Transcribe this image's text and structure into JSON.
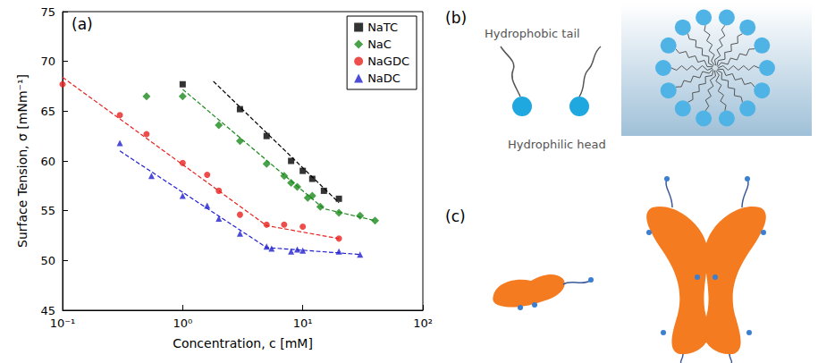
{
  "chart_data": {
    "type": "scatter",
    "annotations": [
      "(a)"
    ],
    "x_label": "Concentration, c [mM]",
    "y_label": "Surface Tension, σ [mNm⁻¹]",
    "log": "x",
    "grid": false,
    "legend": "upper right",
    "xlim": [
      0.1,
      100
    ],
    "xticks": [
      {
        "value": 0.1,
        "label": "10⁻¹"
      },
      {
        "value": 1,
        "label": "10⁰"
      },
      {
        "value": 10,
        "label": "10¹"
      },
      {
        "value": 100,
        "label": "10²"
      }
    ],
    "ylim": [
      45,
      75
    ],
    "yticks": [
      45,
      50,
      55,
      60,
      65,
      70,
      75
    ],
    "series": [
      {
        "name": "NaTC",
        "color": "#000000",
        "marker": "square",
        "line_style": "dashed",
        "x": [
          1,
          3,
          5,
          8,
          10,
          12,
          15,
          20
        ],
        "values": [
          67.7,
          65.2,
          62.5,
          60.0,
          59.0,
          58.2,
          57.0,
          56.2
        ],
        "fit": {
          "x": [
            1.8,
            20
          ],
          "y": [
            68.0,
            55.8
          ]
        }
      },
      {
        "name": "NaC",
        "color": "#1b8a1b",
        "marker": "diamond",
        "line_style": "dashed",
        "x": [
          0.5,
          1,
          2,
          3,
          5,
          7,
          8,
          9,
          11,
          12,
          14,
          20,
          30,
          40
        ],
        "values": [
          66.5,
          66.5,
          63.6,
          62.0,
          59.7,
          58.5,
          57.8,
          57.4,
          56.3,
          56.5,
          55.4,
          54.8,
          54.5,
          54.0
        ],
        "fit": {
          "x": [
            1,
            15,
            40
          ],
          "y": [
            67.2,
            55.2,
            54.0
          ]
        }
      },
      {
        "name": "NaGDC",
        "color": "#e8201e",
        "marker": "circle",
        "line_style": "dashed",
        "x": [
          0.1,
          0.3,
          0.5,
          1,
          1.6,
          2,
          3,
          5,
          7,
          10,
          20
        ],
        "values": [
          67.7,
          64.6,
          62.7,
          59.8,
          58.6,
          57.0,
          54.6,
          53.6,
          53.6,
          53.4,
          52.2
        ],
        "fit": {
          "x": [
            0.1,
            5,
            20
          ],
          "y": [
            68.4,
            53.5,
            52.2
          ]
        }
      },
      {
        "name": "NaDC",
        "color": "#1f1fd0",
        "marker": "triangle",
        "line_style": "dashed",
        "x": [
          0.3,
          0.55,
          1,
          1.6,
          2,
          3,
          5,
          5.5,
          8,
          9,
          10,
          20,
          30
        ],
        "values": [
          61.8,
          58.5,
          56.5,
          55.5,
          54.2,
          52.7,
          51.4,
          51.2,
          50.9,
          51.1,
          51.0,
          50.9,
          50.6
        ],
        "fit": {
          "x": [
            0.3,
            5,
            30
          ],
          "y": [
            61.0,
            51.3,
            50.6
          ]
        }
      }
    ]
  },
  "diagram": {
    "panels": [
      {
        "label": "(b)",
        "texts": [
          "Hydrophobic tail",
          "Hydrophilic head"
        ]
      },
      {
        "label": "(c)"
      }
    ]
  }
}
